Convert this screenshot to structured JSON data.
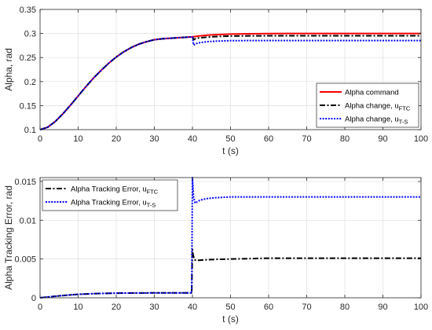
{
  "colors": {
    "command": "#ff0000",
    "ftc": "#000000",
    "ts": "#0000ff",
    "grid": "#dfdfdf",
    "axis": "#262626"
  },
  "chart_data": [
    {
      "type": "line",
      "title": "",
      "xlabel": "t (s)",
      "ylabel": "Alpha, rad",
      "xlim": [
        0,
        100
      ],
      "ylim": [
        0.1,
        0.35
      ],
      "xticks": [
        0,
        10,
        20,
        30,
        40,
        50,
        60,
        70,
        80,
        90,
        100
      ],
      "xtick_labels": [
        "0",
        "10",
        "20",
        "30",
        "40",
        "50",
        "60",
        "70",
        "80",
        "90",
        "100"
      ],
      "yticks": [
        0.1,
        0.15,
        0.2,
        0.25,
        0.3,
        0.35
      ],
      "ytick_labels": [
        "0.1",
        "0.15",
        "0.2",
        "0.25",
        "0.3",
        "0.35"
      ],
      "grid": true,
      "legend_position": "bottom-right",
      "series": [
        {
          "name": "Alpha command",
          "name_sub": "",
          "color": "#ff0000",
          "style": "solid",
          "x": [
            0,
            2,
            4,
            6,
            8,
            10,
            12,
            14,
            16,
            18,
            20,
            22,
            24,
            26,
            28,
            30,
            32,
            34,
            36,
            38,
            40,
            42,
            44,
            46,
            48,
            50,
            55,
            60,
            65,
            70,
            80,
            90,
            100
          ],
          "y": [
            0.1,
            0.105,
            0.117,
            0.133,
            0.151,
            0.17,
            0.189,
            0.207,
            0.223,
            0.238,
            0.251,
            0.262,
            0.271,
            0.278,
            0.283,
            0.287,
            0.289,
            0.29,
            0.291,
            0.292,
            0.293,
            0.295,
            0.2965,
            0.2975,
            0.2982,
            0.2987,
            0.2993,
            0.2997,
            0.2999,
            0.3,
            0.3,
            0.3,
            0.3
          ]
        },
        {
          "name": "Alpha change, u",
          "name_sub": "FTC",
          "color": "#000000",
          "style": "dashdot",
          "x": [
            0,
            2,
            4,
            6,
            8,
            10,
            12,
            14,
            16,
            18,
            20,
            22,
            24,
            26,
            28,
            30,
            32,
            34,
            36,
            38,
            40,
            40.3,
            41,
            42,
            44,
            46,
            48,
            50,
            55,
            60,
            70,
            80,
            90,
            100
          ],
          "y": [
            0.1,
            0.105,
            0.117,
            0.133,
            0.151,
            0.17,
            0.189,
            0.207,
            0.223,
            0.238,
            0.251,
            0.262,
            0.271,
            0.278,
            0.283,
            0.287,
            0.289,
            0.29,
            0.291,
            0.292,
            0.293,
            0.287,
            0.29,
            0.291,
            0.2925,
            0.2935,
            0.2942,
            0.2946,
            0.295,
            0.2952,
            0.2953,
            0.2953,
            0.2953,
            0.2953
          ]
        },
        {
          "name": "Alpha change, u",
          "name_sub": "T-S",
          "color": "#0000ff",
          "style": "dotted",
          "x": [
            0,
            2,
            4,
            6,
            8,
            10,
            12,
            14,
            16,
            18,
            20,
            22,
            24,
            26,
            28,
            30,
            32,
            34,
            36,
            38,
            40,
            40.3,
            41,
            42,
            44,
            46,
            48,
            50,
            55,
            60,
            70,
            80,
            90,
            100
          ],
          "y": [
            0.1,
            0.105,
            0.117,
            0.133,
            0.151,
            0.17,
            0.189,
            0.207,
            0.223,
            0.238,
            0.251,
            0.262,
            0.271,
            0.278,
            0.283,
            0.287,
            0.289,
            0.29,
            0.291,
            0.292,
            0.293,
            0.276,
            0.279,
            0.281,
            0.283,
            0.284,
            0.2845,
            0.285,
            0.2852,
            0.2853,
            0.2853,
            0.2853,
            0.2853,
            0.2853
          ]
        }
      ]
    },
    {
      "type": "line",
      "title": "",
      "xlabel": "t (s)",
      "ylabel": "Alpha Tracking Error, rad",
      "xlim": [
        0,
        100
      ],
      "ylim": [
        0,
        0.0155
      ],
      "xticks": [
        0,
        10,
        20,
        30,
        40,
        50,
        60,
        70,
        80,
        90,
        100
      ],
      "xtick_labels": [
        "0",
        "10",
        "20",
        "30",
        "40",
        "50",
        "60",
        "70",
        "80",
        "90",
        "100"
      ],
      "yticks": [
        0,
        0.005,
        0.01,
        0.015
      ],
      "ytick_labels": [
        "0",
        "0.005",
        "0.01",
        "0.015"
      ],
      "grid": true,
      "legend_position": "top-left",
      "series": [
        {
          "name": "Alpha Tracking Error, u",
          "name_sub": "FTC",
          "color": "#000000",
          "style": "dashdot",
          "x": [
            0,
            2,
            5,
            10,
            15,
            20,
            25,
            30,
            35,
            39.8,
            40,
            40.2,
            40.5,
            41,
            42,
            44,
            46,
            50,
            55,
            60,
            70,
            80,
            90,
            100
          ],
          "y": [
            0,
            0.0001,
            0.00025,
            0.00045,
            0.00055,
            0.0006,
            0.00062,
            0.00063,
            0.00063,
            0.00063,
            0.0062,
            0.0055,
            0.0049,
            0.0048,
            0.00485,
            0.0049,
            0.00495,
            0.005,
            0.00505,
            0.0051,
            0.0051,
            0.0051,
            0.0051,
            0.0051
          ]
        },
        {
          "name": "Alpha Tracking Error, u",
          "name_sub": "T-S",
          "color": "#0000ff",
          "style": "dotted",
          "x": [
            0,
            2,
            5,
            10,
            15,
            20,
            25,
            30,
            35,
            39.8,
            40,
            40.3,
            40.7,
            41,
            42,
            44,
            46,
            50,
            55,
            60,
            70,
            80,
            90,
            100
          ],
          "y": [
            0,
            0.0001,
            0.00025,
            0.00045,
            0.00055,
            0.0006,
            0.00062,
            0.00063,
            0.00063,
            0.00063,
            0.0155,
            0.013,
            0.0122,
            0.0123,
            0.0126,
            0.0128,
            0.0129,
            0.013,
            0.013,
            0.013,
            0.013,
            0.013,
            0.013,
            0.013
          ]
        }
      ]
    }
  ]
}
